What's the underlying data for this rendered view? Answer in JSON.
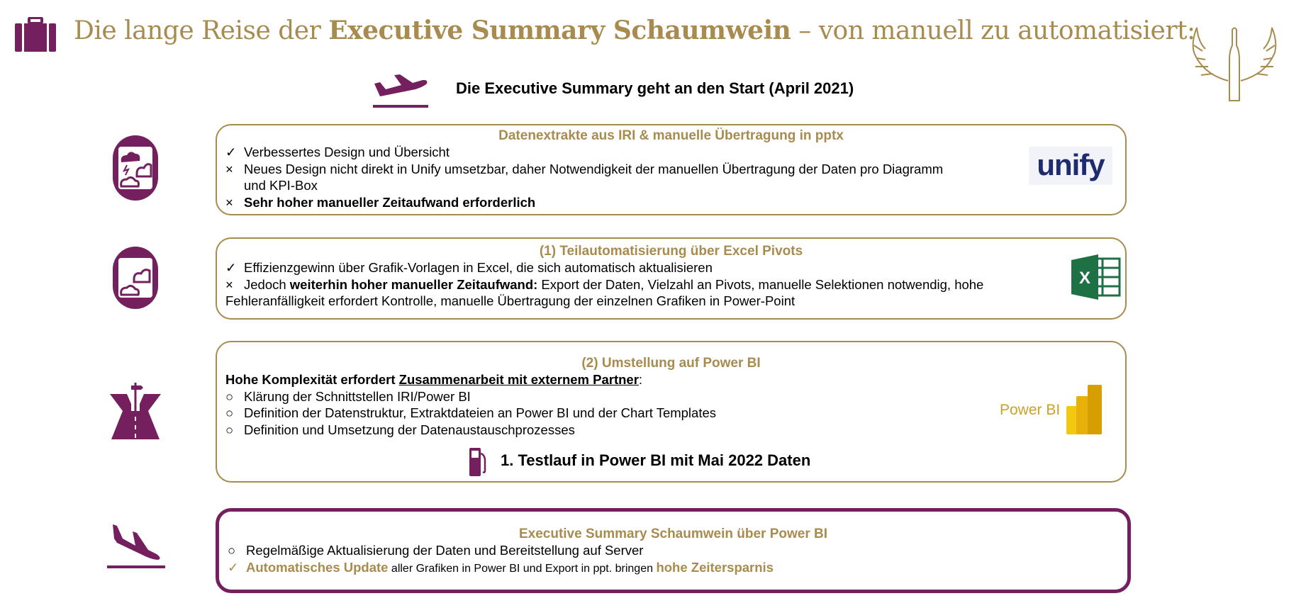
{
  "colors": {
    "gold": "#a88b4e",
    "purple": "#74205e"
  },
  "header": {
    "title_pre": "Die lange Reise der ",
    "title_bold": "Executive Summary Schaumwein",
    "title_post": " – von manuell zu automatisiert:",
    "subtitle": "Die Executive Summary geht an den Start (April 2021)",
    "icons": [
      "suitcase-icon",
      "takeoff-plane-icon",
      "winged-bottle-logo"
    ]
  },
  "steps": [
    {
      "heading": "Datenextrakte aus IRI & manuelle Übertragung in pptx",
      "icon": "airplane-window-storm-icon",
      "logo": "unify",
      "items": [
        {
          "marker": "✓",
          "text": "Verbessertes Design und Übersicht"
        },
        {
          "marker": "×",
          "text": "Neues Design nicht direkt in Unify umsetzbar, daher Notwendigkeit der manuellen Übertragung der Daten pro Diagramm",
          "cont": "und KPI-Box"
        },
        {
          "marker": "×",
          "text": "Sehr hoher manueller Zeitaufwand erforderlich"
        }
      ]
    },
    {
      "heading": "(1) Teilautomatisierung über Excel Pivots",
      "icon": "airplane-window-cloud-icon",
      "logo": "excel",
      "items": [
        {
          "marker": "✓",
          "text": "Effizienzgewinn über Grafik-Vorlagen in Excel, die sich automatisch aktualisieren"
        },
        {
          "marker": "×",
          "pre": "Jedoch ",
          "bold": "weiterhin hoher manueller Zeitaufwand:",
          "post": " Export der Daten, Vielzahl an Pivots, manuelle Selektionen notwendig, hohe",
          "cont": "Fehleranfälligkeit erfordert Kontrolle, manuelle Übertragung der einzelnen Grafiken in Power-Point"
        }
      ]
    },
    {
      "heading": "(2) Umstellung auf Power BI",
      "icon": "runway-signpost-icon",
      "logo": "Power BI",
      "intro_pre": "Hohe Komplexität erfordert ",
      "intro_underlined": "Zusammenarbeit mit externem Partner",
      "intro_post": ":",
      "items": [
        {
          "marker": "○",
          "text": "Klärung der Schnittstellen IRI/Power BI"
        },
        {
          "marker": "○",
          "text": "Definition der Datenstruktur, Extraktdateien an Power BI und der Chart Templates"
        },
        {
          "marker": "○",
          "text": "Definition und Umsetzung der Datenaustauschprozesses"
        }
      ],
      "milestone": "1. Testlauf in Power BI mit Mai 2022 Daten",
      "milestone_icon": "fuel-pump-icon"
    },
    {
      "heading": "Executive Summary Schaumwein über Power BI",
      "icon": "landing-plane-icon",
      "items": [
        {
          "marker": "○",
          "text": "Regelmäßige Aktualisierung der Daten und Bereitstellung auf Server"
        },
        {
          "marker": "✓",
          "bold1": "Automatisches Update",
          "mid": " aller Grafiken in Power BI und Export in ppt. bringen ",
          "bold2": "hohe Zeitersparnis"
        }
      ]
    }
  ]
}
